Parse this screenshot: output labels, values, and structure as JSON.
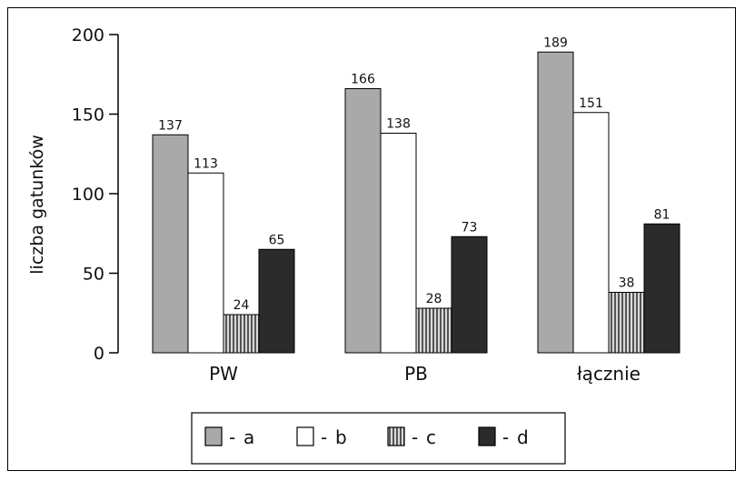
{
  "chart_data": {
    "type": "bar",
    "title": "",
    "xlabel": "",
    "ylabel": "liczba gatunków",
    "ylim": [
      0,
      200
    ],
    "yticks": [
      0,
      50,
      100,
      150,
      200
    ],
    "categories": [
      "PW",
      "PB",
      "łącznie"
    ],
    "series": [
      {
        "name": "a",
        "values": [
          137,
          166,
          189
        ],
        "color": "#a9a9a9",
        "pattern": "solid-gray"
      },
      {
        "name": "b",
        "values": [
          113,
          138,
          151
        ],
        "color": "#ffffff",
        "pattern": "white"
      },
      {
        "name": "c",
        "values": [
          24,
          28,
          38
        ],
        "color": "#8a8a8a",
        "pattern": "vertical-stripes"
      },
      {
        "name": "d",
        "values": [
          65,
          73,
          81
        ],
        "color": "#2b2b2b",
        "pattern": "solid-dark"
      }
    ],
    "legend": {
      "placement": "bottom-center",
      "separator": "-"
    },
    "grid": false
  }
}
